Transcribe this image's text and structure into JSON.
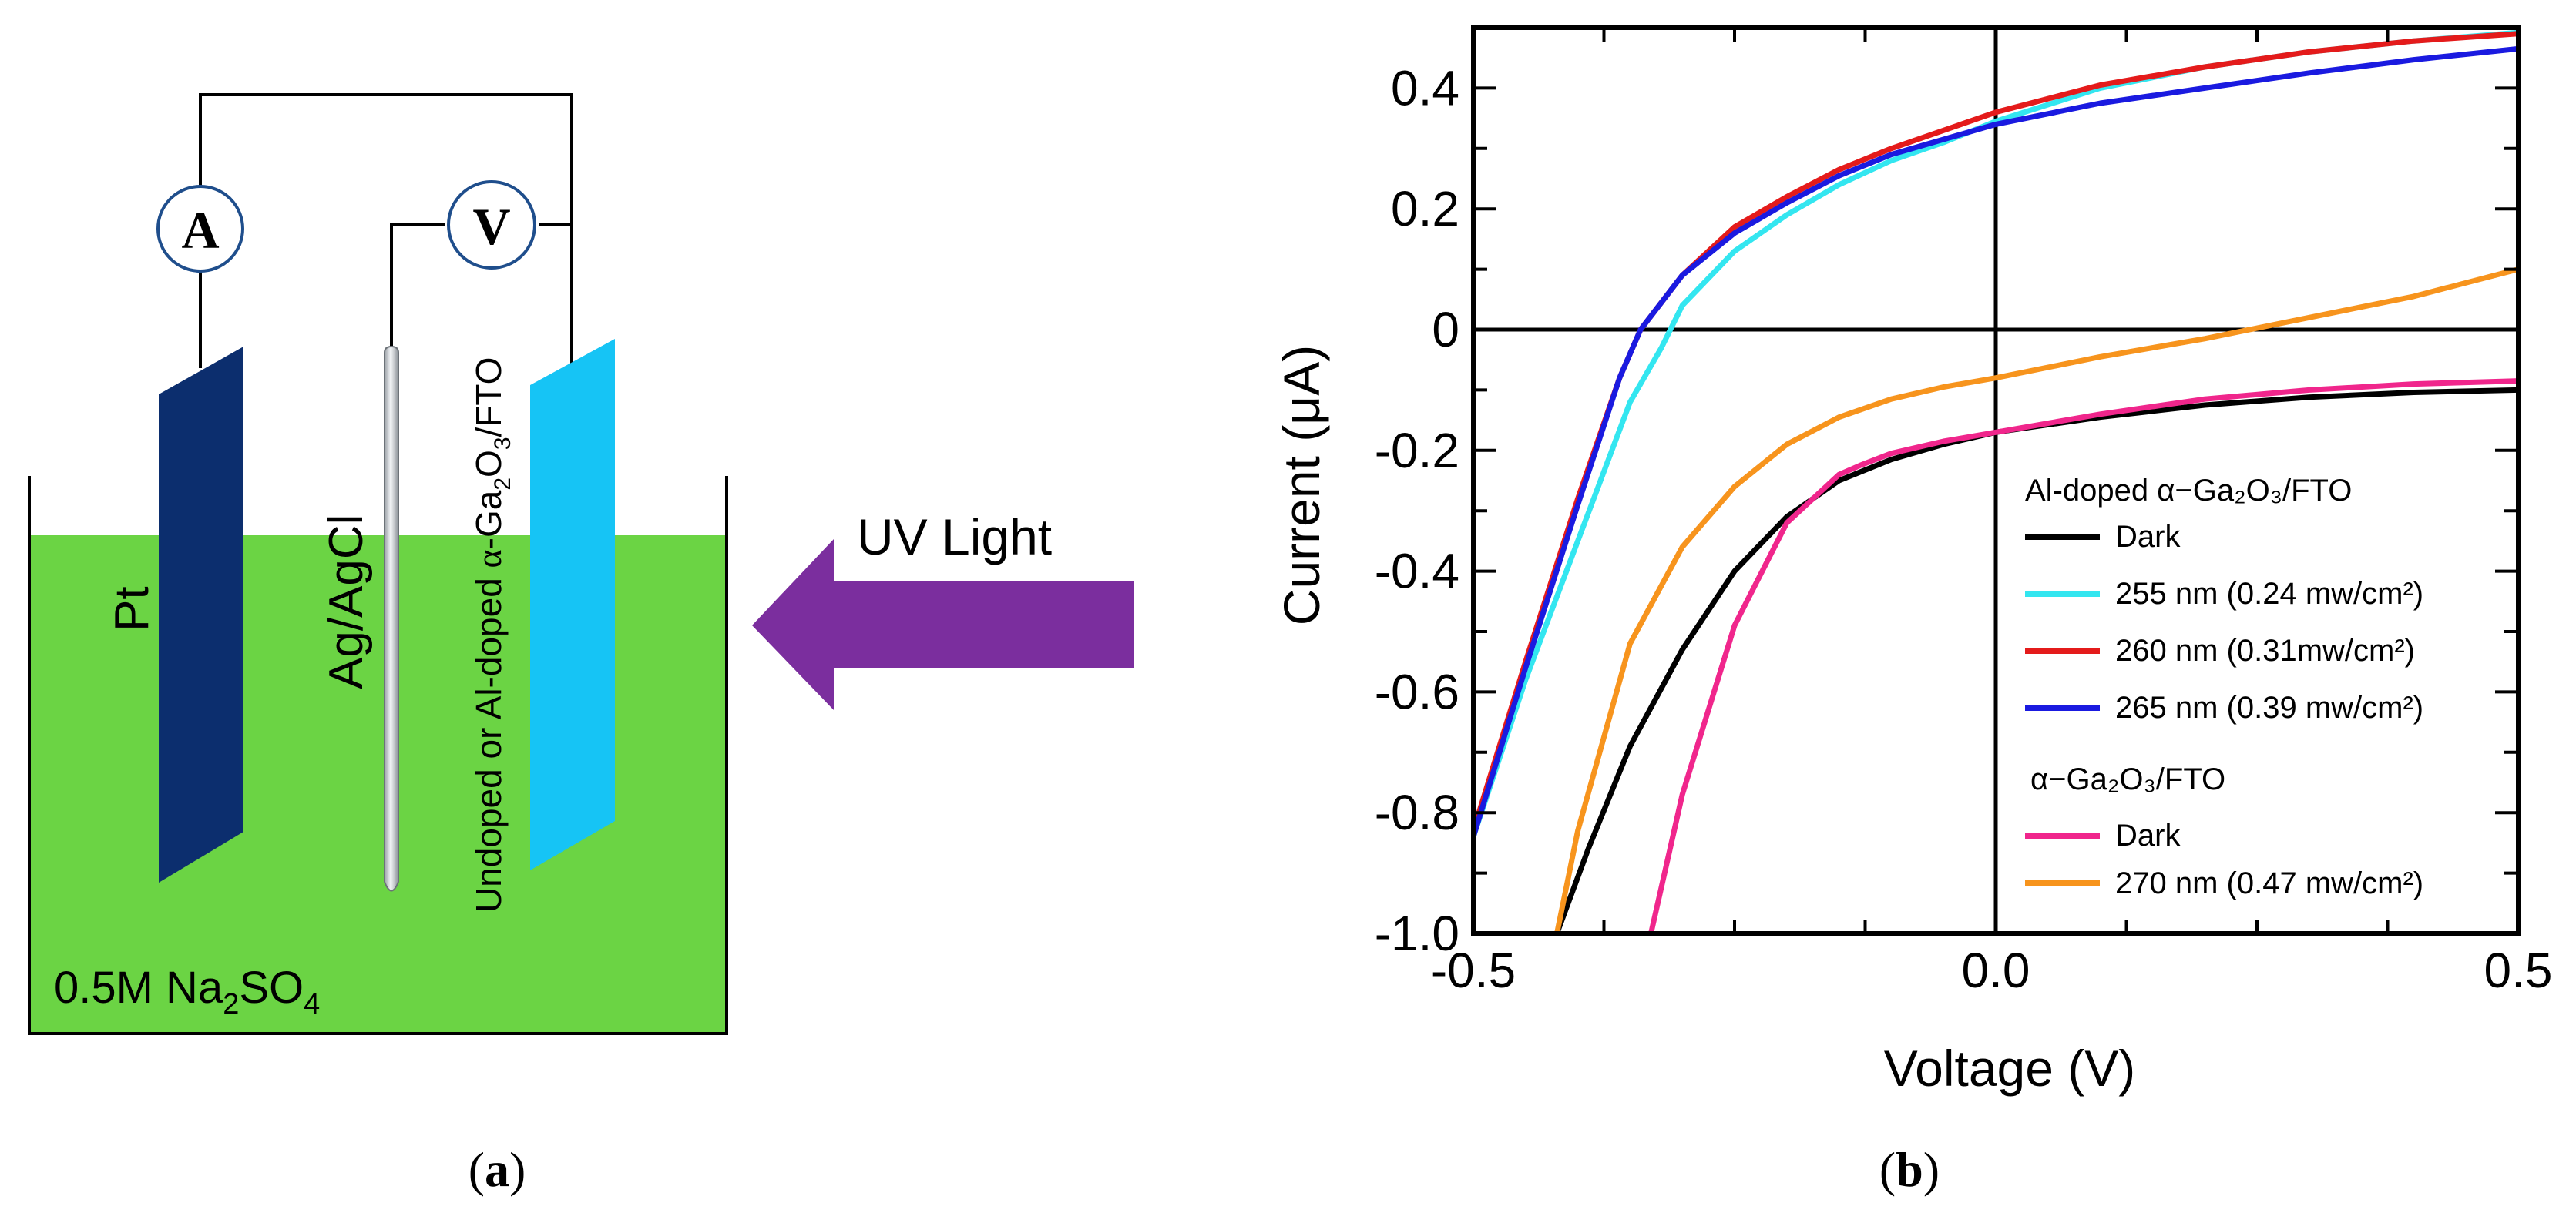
{
  "diagram": {
    "ammeter_label": "A",
    "voltmeter_label": "V",
    "pt_label": "Pt",
    "ref_label": "Ag/AgCl",
    "work_label_prefix": "Undoped or Al-doped ",
    "work_label_alpha": "α",
    "work_label_ga": "-Ga",
    "work_label_sub2": "2",
    "work_label_o": "O",
    "work_label_sub3": "3",
    "work_label_fto": "/FTO",
    "electrolyte_prefix": "0.5M Na",
    "electrolyte_sub2": "2",
    "electrolyte_so": "SO",
    "electrolyte_sub4": "4",
    "uv_label": "UV Light",
    "colors": {
      "electrolyte": "#6bd444",
      "pt": "#0c2e6e",
      "work": "#16c4f5",
      "arrow": "#7b2e9e",
      "meter_ring": "#1f4e8c"
    }
  },
  "captions": {
    "a_open": "(",
    "a_letter": "a",
    "a_close": ")",
    "b_open": "(",
    "b_letter": "b",
    "b_close": ")"
  },
  "chart_data": {
    "type": "line",
    "xlabel": "Voltage (V)",
    "ylabel": "Current (μA)",
    "xlim": [
      -0.5,
      0.5
    ],
    "ylim": [
      -1.0,
      0.5
    ],
    "x_ticks": [
      "-0.5",
      "0.0",
      "0.5"
    ],
    "x_tick_values": [
      -0.5,
      0.0,
      0.5
    ],
    "y_ticks": [
      "0.4",
      "0.2",
      "0",
      "-0.2",
      "-0.4",
      "-0.6",
      "-0.8",
      "-1.0"
    ],
    "y_tick_values": [
      0.4,
      0.2,
      0,
      -0.2,
      -0.4,
      -0.6,
      -0.8,
      -1.0
    ],
    "legend_position": "bottom-right",
    "legend_groups": [
      {
        "title": "Al-doped  α−Ga₂O₃/FTO",
        "entries": [
          "Dark",
          "255 nm (0.24 mw/cm²)",
          "260 nm (0.31mw/cm²)",
          "265 nm (0.39 mw/cm²)"
        ]
      },
      {
        "title": "α−Ga₂O₃/FTO",
        "entries": [
          "Dark",
          "270 nm (0.47 mw/cm²)"
        ]
      }
    ],
    "series": [
      {
        "name": "Dark",
        "color": "#000000",
        "x": [
          -0.42,
          -0.39,
          -0.35,
          -0.3,
          -0.25,
          -0.2,
          -0.15,
          -0.1,
          -0.05,
          0.0,
          0.1,
          0.2,
          0.3,
          0.4,
          0.5
        ],
        "y": [
          -1.0,
          -0.86,
          -0.69,
          -0.53,
          -0.4,
          -0.31,
          -0.25,
          -0.215,
          -0.19,
          -0.17,
          -0.145,
          -0.125,
          -0.112,
          -0.104,
          -0.1
        ]
      },
      {
        "name": "255 nm (0.24 mw/cm²)",
        "color": "#33e6f0",
        "x": [
          -0.5,
          -0.45,
          -0.4,
          -0.35,
          -0.32,
          -0.3,
          -0.25,
          -0.2,
          -0.15,
          -0.1,
          -0.05,
          0.0,
          0.1,
          0.2,
          0.3,
          0.4,
          0.5
        ],
        "y": [
          -0.84,
          -0.58,
          -0.35,
          -0.12,
          -0.03,
          0.04,
          0.13,
          0.19,
          0.24,
          0.28,
          0.31,
          0.345,
          0.4,
          0.435,
          0.46,
          0.478,
          0.492
        ]
      },
      {
        "name": "260 nm (0.31mw/cm²)",
        "color": "#e41b1b",
        "x": [
          -0.5,
          -0.45,
          -0.4,
          -0.36,
          -0.34,
          -0.3,
          -0.25,
          -0.2,
          -0.15,
          -0.1,
          -0.05,
          0.0,
          0.1,
          0.2,
          0.3,
          0.4,
          0.5
        ],
        "y": [
          -0.83,
          -0.55,
          -0.28,
          -0.08,
          0.0,
          0.09,
          0.17,
          0.22,
          0.265,
          0.3,
          0.33,
          0.36,
          0.405,
          0.435,
          0.46,
          0.478,
          0.49
        ]
      },
      {
        "name": "265 nm (0.39 mw/cm²)",
        "color": "#1a1ae0",
        "x": [
          -0.5,
          -0.45,
          -0.4,
          -0.36,
          -0.34,
          -0.3,
          -0.25,
          -0.2,
          -0.15,
          -0.1,
          -0.05,
          0.0,
          0.1,
          0.2,
          0.3,
          0.4,
          0.5
        ],
        "y": [
          -0.84,
          -0.56,
          -0.29,
          -0.08,
          0.0,
          0.09,
          0.16,
          0.21,
          0.255,
          0.29,
          0.315,
          0.34,
          0.375,
          0.4,
          0.425,
          0.447,
          0.465
        ]
      },
      {
        "name": "Dark",
        "color": "#f0268c",
        "x": [
          -0.33,
          -0.3,
          -0.25,
          -0.2,
          -0.15,
          -0.13,
          -0.1,
          -0.05,
          0.0,
          0.1,
          0.2,
          0.3,
          0.4,
          0.5
        ],
        "y": [
          -1.0,
          -0.77,
          -0.49,
          -0.32,
          -0.24,
          -0.225,
          -0.205,
          -0.185,
          -0.17,
          -0.14,
          -0.115,
          -0.1,
          -0.09,
          -0.085
        ]
      },
      {
        "name": "270 nm (0.47 mw/cm²)",
        "color": "#f7941d",
        "x": [
          -0.42,
          -0.4,
          -0.35,
          -0.3,
          -0.25,
          -0.2,
          -0.15,
          -0.1,
          -0.05,
          0.0,
          0.1,
          0.2,
          0.3,
          0.4,
          0.5
        ],
        "y": [
          -1.0,
          -0.83,
          -0.52,
          -0.36,
          -0.26,
          -0.19,
          -0.145,
          -0.115,
          -0.095,
          -0.08,
          -0.045,
          -0.015,
          0.02,
          0.055,
          0.1
        ]
      }
    ]
  }
}
